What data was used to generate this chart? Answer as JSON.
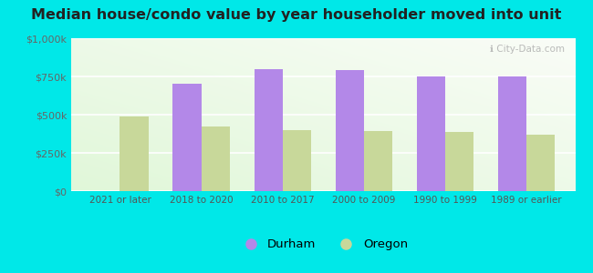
{
  "title": "Median house/condo value by year householder moved into unit",
  "categories": [
    "2021 or later",
    "2018 to 2020",
    "2010 to 2017",
    "2000 to 2009",
    "1990 to 1999",
    "1989 or earlier"
  ],
  "durham_values": [
    0,
    700000,
    800000,
    790000,
    750000,
    750000
  ],
  "oregon_values": [
    490000,
    420000,
    400000,
    390000,
    385000,
    370000
  ],
  "durham_color": "#b388e8",
  "oregon_color": "#c8d89a",
  "background_color": "#00e8e8",
  "ylim": [
    0,
    1000000
  ],
  "yticks": [
    0,
    250000,
    500000,
    750000,
    1000000
  ],
  "ytick_labels": [
    "$0",
    "$250k",
    "$500k",
    "$750k",
    "$1,000k"
  ],
  "legend_labels": [
    "Durham",
    "Oregon"
  ],
  "watermark": "ℹ City-Data.com",
  "bar_width": 0.35,
  "title_fontsize": 11.5
}
